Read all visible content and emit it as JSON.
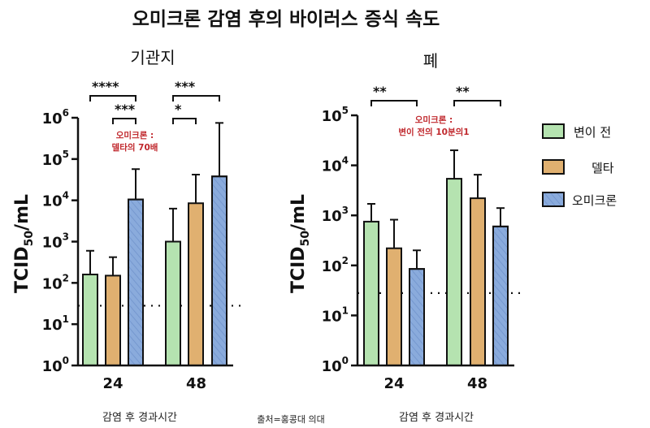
{
  "title": "오미크론 감염 후의 바이러스 증식 속도",
  "source_note": "출처=홍콩대 의대",
  "legend": [
    {
      "name": "변이 전",
      "color": "#b5e3b0"
    },
    {
      "name": "델타",
      "color": "#e0b070"
    },
    {
      "name": "오미크론",
      "color": "#8aabdc"
    }
  ],
  "chart_data": [
    {
      "type": "bar",
      "title": "기관지",
      "xlabel": "감염 후 경과시간",
      "ylabel": "TCID50/mL",
      "y_scale": "log",
      "ylim": [
        1,
        1000000
      ],
      "yticks": [
        1,
        10,
        100,
        1000,
        10000,
        100000,
        1000000
      ],
      "ytick_labels": [
        "10^0",
        "10^1",
        "10^2",
        "10^3",
        "10^4",
        "10^5",
        "10^6"
      ],
      "categories": [
        "24",
        "48"
      ],
      "series": [
        {
          "name": "변이 전",
          "values": [
            160,
            1000
          ],
          "error_upper": [
            600,
            6300
          ]
        },
        {
          "name": "델타",
          "values": [
            150,
            8500
          ],
          "error_upper": [
            420,
            42000
          ]
        },
        {
          "name": "오미크론",
          "values": [
            10500,
            38000
          ],
          "error_upper": [
            57000,
            750000
          ]
        }
      ],
      "detection_limit": 28,
      "significance": [
        {
          "label": "****",
          "from": {
            "category": 0,
            "series": 0
          },
          "to": {
            "category": 0,
            "series": 2
          },
          "row": 0
        },
        {
          "label": "***",
          "from": {
            "category": 0,
            "series": 1
          },
          "to": {
            "category": 0,
            "series": 2
          },
          "row": 1
        },
        {
          "label": "***",
          "from": {
            "category": 1,
            "series": 0
          },
          "to": {
            "category": 1,
            "series": 2
          },
          "row": 0
        },
        {
          "label": "*",
          "from": {
            "category": 1,
            "series": 0
          },
          "to": {
            "category": 1,
            "series": 1
          },
          "row": 1
        }
      ],
      "annotation": [
        "오미크론 :",
        "델타의 70배"
      ]
    },
    {
      "type": "bar",
      "title": "폐",
      "xlabel": "감염 후 경과시간",
      "ylabel": "TCID50/mL",
      "y_scale": "log",
      "ylim": [
        1,
        100000
      ],
      "yticks": [
        1,
        10,
        100,
        1000,
        10000,
        100000
      ],
      "ytick_labels": [
        "10^0",
        "10^1",
        "10^2",
        "10^3",
        "10^4",
        "10^5"
      ],
      "categories": [
        "24",
        "48"
      ],
      "series": [
        {
          "name": "변이 전",
          "values": [
            750,
            5400
          ],
          "error_upper": [
            1700,
            20000
          ]
        },
        {
          "name": "델타",
          "values": [
            220,
            2200
          ],
          "error_upper": [
            820,
            6500
          ]
        },
        {
          "name": "오미크론",
          "values": [
            85,
            600
          ],
          "error_upper": [
            200,
            1400
          ]
        }
      ],
      "detection_limit": 28,
      "significance": [
        {
          "label": "**",
          "from": {
            "category": 0,
            "series": 0
          },
          "to": {
            "category": 0,
            "series": 2
          },
          "row": 0
        },
        {
          "label": "**",
          "from": {
            "category": 1,
            "series": 0
          },
          "to": {
            "category": 1,
            "series": 2
          },
          "row": 0
        }
      ],
      "annotation": [
        "오미크론 :",
        "변이 전의 10분의1"
      ]
    }
  ]
}
